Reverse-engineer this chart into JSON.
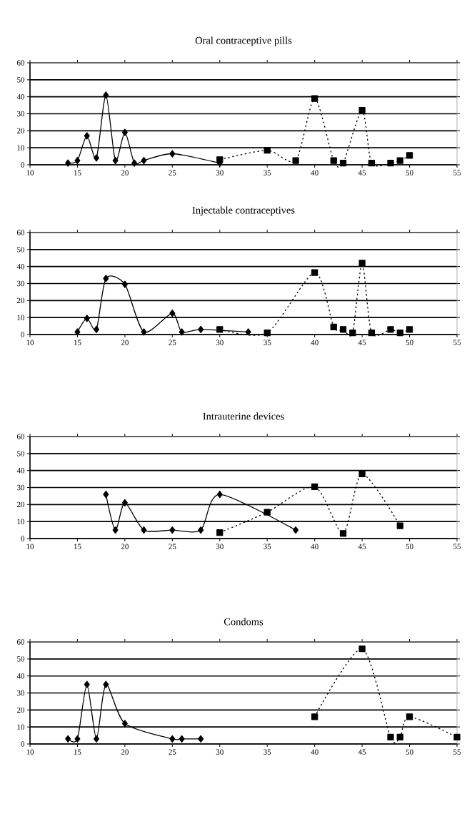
{
  "chart_data": [
    {
      "type": "line",
      "title": "Oral contraceptive pills",
      "xlim": [
        10,
        55
      ],
      "ylim": [
        0,
        60
      ],
      "xticks": [
        10,
        15,
        20,
        25,
        30,
        35,
        40,
        45,
        50,
        55
      ],
      "yticks": [
        0,
        10,
        20,
        30,
        40,
        50,
        60
      ],
      "grid": "y",
      "series": [
        {
          "color": "#000000",
          "marker": "diamond",
          "line_style": "solid",
          "x": [
            14,
            15,
            16,
            17,
            18,
            19,
            20,
            21,
            22,
            25,
            30
          ],
          "values": [
            1,
            2.5,
            17,
            4,
            41,
            2.5,
            19,
            1,
            2.5,
            6.5,
            1
          ]
        },
        {
          "color": "#000000",
          "marker": "square",
          "line_style": "dotted",
          "x": [
            30,
            35,
            38,
            40,
            42,
            43,
            45,
            46,
            48,
            49,
            50
          ],
          "values": [
            3,
            8.5,
            2.5,
            39,
            2.5,
            1,
            32,
            1,
            1,
            2.5,
            5.5
          ]
        }
      ]
    },
    {
      "type": "line",
      "title": "Injectable contraceptives",
      "xlim": [
        10,
        55
      ],
      "ylim": [
        0,
        60
      ],
      "xticks": [
        10,
        15,
        20,
        25,
        30,
        35,
        40,
        45,
        50,
        55
      ],
      "yticks": [
        0,
        10,
        20,
        30,
        40,
        50,
        60
      ],
      "grid": "y",
      "series": [
        {
          "color": "#000000",
          "marker": "diamond",
          "line_style": "solid",
          "x": [
            15,
            16,
            17,
            18,
            20,
            22,
            25,
            26,
            28,
            33
          ],
          "values": [
            1.5,
            9.5,
            3,
            33,
            29.5,
            1.5,
            12.5,
            1.5,
            3,
            1.5
          ]
        },
        {
          "color": "#000000",
          "marker": "square",
          "line_style": "dotted",
          "x": [
            30,
            35,
            40,
            42,
            43,
            44,
            45,
            46,
            48,
            49,
            50
          ],
          "values": [
            3,
            1,
            36.5,
            4.5,
            3,
            1,
            42,
            1,
            3,
            1,
            3
          ]
        }
      ]
    },
    {
      "type": "line",
      "title": "Intrauterine devices",
      "xlim": [
        10,
        55
      ],
      "ylim": [
        0,
        60
      ],
      "xticks": [
        10,
        15,
        20,
        25,
        30,
        35,
        40,
        45,
        50,
        55
      ],
      "yticks": [
        0,
        10,
        20,
        30,
        40,
        50,
        60
      ],
      "grid": "y",
      "series": [
        {
          "color": "#000000",
          "marker": "diamond",
          "line_style": "solid",
          "x": [
            18,
            19,
            20,
            22,
            25,
            28,
            30,
            38
          ],
          "values": [
            26,
            5,
            21,
            5,
            5,
            5,
            26,
            5
          ]
        },
        {
          "color": "#000000",
          "marker": "square",
          "line_style": "dotted",
          "x": [
            30,
            35,
            40,
            43,
            45,
            49
          ],
          "values": [
            3.5,
            15.5,
            30.5,
            3,
            38,
            7.5
          ]
        }
      ]
    },
    {
      "type": "line",
      "title": "Condoms",
      "xlim": [
        10,
        55
      ],
      "ylim": [
        0,
        60
      ],
      "xticks": [
        10,
        15,
        20,
        25,
        30,
        35,
        40,
        45,
        50,
        55
      ],
      "yticks": [
        0,
        10,
        20,
        30,
        40,
        50,
        60
      ],
      "grid": "y",
      "series": [
        {
          "color": "#000000",
          "marker": "diamond",
          "line_style": "solid",
          "x": [
            14,
            15,
            16,
            17,
            18,
            20,
            25,
            26,
            28
          ],
          "values": [
            3,
            3,
            35,
            3,
            35,
            12,
            3,
            3,
            3
          ]
        },
        {
          "color": "#000000",
          "marker": "square",
          "line_style": "dotted",
          "x": [
            40,
            45,
            48,
            49,
            50,
            55
          ],
          "values": [
            16,
            56,
            4,
            4,
            16,
            4
          ]
        }
      ]
    }
  ]
}
